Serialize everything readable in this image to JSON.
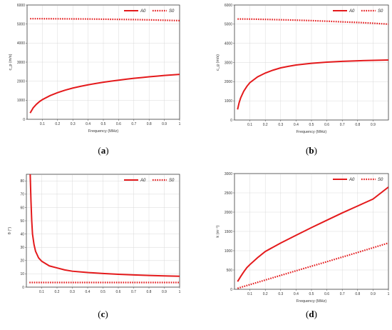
{
  "chart_data": [
    {
      "type": "line",
      "panel_label": "a",
      "xlabel": "Frequency (MHz)",
      "ylabel": "c_p (m/s)",
      "xlim": [
        0,
        1
      ],
      "ylim": [
        0,
        6000
      ],
      "xticks": [
        "0.1",
        "0.2",
        "0.3",
        "0.4",
        "0.5",
        "0.6",
        "0.7",
        "0.8",
        "0.9",
        "1"
      ],
      "yticks": [
        "0",
        "1000",
        "2000",
        "3000",
        "4000",
        "5000",
        "6000"
      ],
      "grid": true,
      "legend_position": "top-right",
      "series": [
        {
          "name": "A0",
          "style": "solid",
          "color": "#e41a1c",
          "x": [
            0.02,
            0.04,
            0.06,
            0.08,
            0.1,
            0.15,
            0.2,
            0.25,
            0.3,
            0.35,
            0.4,
            0.45,
            0.5,
            0.55,
            0.6,
            0.65,
            0.7,
            0.75,
            0.8,
            0.85,
            0.9,
            0.95,
            1.0
          ],
          "y": [
            330,
            600,
            780,
            920,
            1030,
            1240,
            1400,
            1530,
            1640,
            1730,
            1810,
            1880,
            1945,
            2000,
            2055,
            2105,
            2150,
            2190,
            2230,
            2265,
            2300,
            2330,
            2360
          ]
        },
        {
          "name": "S0",
          "style": "dotted",
          "color": "#e41a1c",
          "x": [
            0.02,
            0.1,
            0.2,
            0.3,
            0.4,
            0.5,
            0.6,
            0.7,
            0.8,
            0.9,
            1.0
          ],
          "y": [
            5280,
            5280,
            5275,
            5270,
            5265,
            5255,
            5245,
            5235,
            5220,
            5200,
            5180
          ]
        }
      ]
    },
    {
      "type": "line",
      "panel_label": "b",
      "xlabel": "Frequency (MHz)",
      "ylabel": "c_g (m/s)",
      "xlim": [
        0,
        1
      ],
      "ylim": [
        0,
        6000
      ],
      "xticks": [
        "0.1",
        "0.2",
        "0.3",
        "0.4",
        "0.5",
        "0.6",
        "0.7",
        "0.8",
        "0.9"
      ],
      "yticks": [
        "0",
        "1000",
        "2000",
        "3000",
        "4000",
        "5000",
        "6000"
      ],
      "grid": true,
      "legend_position": "top-right",
      "series": [
        {
          "name": "A0",
          "style": "solid",
          "color": "#e41a1c",
          "x": [
            0.02,
            0.03,
            0.04,
            0.06,
            0.08,
            0.1,
            0.15,
            0.2,
            0.25,
            0.3,
            0.35,
            0.4,
            0.5,
            0.6,
            0.7,
            0.8,
            0.9,
            1.0
          ],
          "y": [
            550,
            900,
            1150,
            1500,
            1750,
            1950,
            2250,
            2450,
            2600,
            2720,
            2800,
            2870,
            2960,
            3020,
            3060,
            3090,
            3110,
            3130
          ]
        },
        {
          "name": "S0",
          "style": "dotted",
          "color": "#e41a1c",
          "x": [
            0.02,
            0.1,
            0.2,
            0.3,
            0.4,
            0.5,
            0.6,
            0.7,
            0.8,
            0.9,
            1.0
          ],
          "y": [
            5270,
            5265,
            5250,
            5230,
            5210,
            5185,
            5155,
            5120,
            5090,
            5050,
            5000
          ]
        }
      ]
    },
    {
      "type": "line",
      "panel_label": "c",
      "xlabel": "",
      "ylabel": "θ (°)",
      "xlim": [
        0,
        1
      ],
      "ylim": [
        0,
        85
      ],
      "xticks": [
        "0.1",
        "0.2",
        "0.3",
        "0.4",
        "0.5",
        "0.6",
        "0.7",
        "0.8",
        "0.9",
        "1"
      ],
      "yticks": [
        "0",
        "10",
        "20",
        "30",
        "40",
        "50",
        "60",
        "70",
        "80"
      ],
      "grid": true,
      "legend_position": "top-right",
      "series": [
        {
          "name": "A0",
          "style": "solid",
          "color": "#e41a1c",
          "x": [
            0.025,
            0.03,
            0.035,
            0.04,
            0.05,
            0.06,
            0.08,
            0.1,
            0.15,
            0.2,
            0.25,
            0.3,
            0.4,
            0.5,
            0.6,
            0.7,
            0.8,
            0.9,
            1.0
          ],
          "y": [
            85,
            65,
            50,
            40,
            32,
            27,
            22,
            19.5,
            16,
            14.5,
            13,
            12,
            11,
            10.3,
            9.7,
            9.2,
            8.8,
            8.5,
            8.2
          ]
        },
        {
          "name": "S0",
          "style": "dotted",
          "color": "#e41a1c",
          "x": [
            0.02,
            0.2,
            0.4,
            0.6,
            0.8,
            1.0
          ],
          "y": [
            3.5,
            3.5,
            3.5,
            3.5,
            3.5,
            3.5
          ]
        }
      ]
    },
    {
      "type": "line",
      "panel_label": "d",
      "xlabel": "Frequency (MHz)",
      "ylabel": "k (m⁻¹)",
      "xlim": [
        0,
        1
      ],
      "ylim": [
        0,
        3000
      ],
      "xticks": [
        "0.1",
        "0.2",
        "0.3",
        "0.4",
        "0.5",
        "0.6",
        "0.7",
        "0.8",
        "0.9",
        "1"
      ],
      "yticks": [
        "0",
        "500",
        "1000",
        "1500",
        "2000",
        "2500",
        "3000"
      ],
      "grid": true,
      "legend_position": "top-right",
      "series": [
        {
          "name": "A0",
          "style": "solid",
          "color": "#e41a1c",
          "x": [
            0.02,
            0.04,
            0.06,
            0.08,
            0.1,
            0.15,
            0.2,
            0.3,
            0.4,
            0.5,
            0.6,
            0.7,
            0.8,
            0.9,
            1.0
          ],
          "y": [
            200,
            330,
            450,
            560,
            640,
            820,
            980,
            1200,
            1400,
            1600,
            1790,
            1980,
            2160,
            2340,
            2650
          ]
        },
        {
          "name": "S0",
          "style": "dotted",
          "color": "#e41a1c",
          "x": [
            0.02,
            0.2,
            0.4,
            0.6,
            0.8,
            1.0
          ],
          "y": [
            25,
            240,
            480,
            715,
            955,
            1200
          ]
        }
      ]
    }
  ]
}
